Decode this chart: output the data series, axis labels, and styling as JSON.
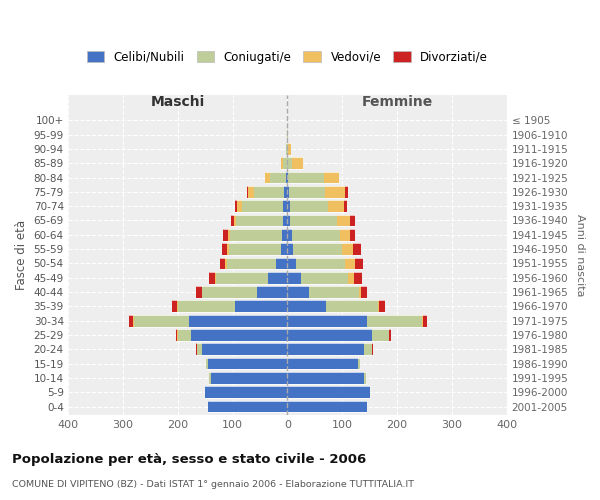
{
  "age_groups": [
    "0-4",
    "5-9",
    "10-14",
    "15-19",
    "20-24",
    "25-29",
    "30-34",
    "35-39",
    "40-44",
    "45-49",
    "50-54",
    "55-59",
    "60-64",
    "65-69",
    "70-74",
    "75-79",
    "80-84",
    "85-89",
    "90-94",
    "95-99",
    "100+"
  ],
  "birth_years": [
    "2001-2005",
    "1996-2000",
    "1991-1995",
    "1986-1990",
    "1981-1985",
    "1976-1980",
    "1971-1975",
    "1966-1970",
    "1961-1965",
    "1956-1960",
    "1951-1955",
    "1946-1950",
    "1941-1945",
    "1936-1940",
    "1931-1935",
    "1926-1930",
    "1921-1925",
    "1916-1920",
    "1911-1915",
    "1906-1910",
    "≤ 1905"
  ],
  "colors": {
    "celibe": "#4472C4",
    "coniugato": "#BFCE99",
    "vedovo": "#F0C060",
    "divorziato": "#CC2222"
  },
  "male_celibe": [
    145,
    150,
    140,
    145,
    155,
    175,
    180,
    95,
    55,
    35,
    20,
    12,
    10,
    8,
    8,
    6,
    3,
    1,
    0,
    0,
    0
  ],
  "male_coniugato": [
    0,
    0,
    2,
    3,
    10,
    25,
    100,
    105,
    100,
    95,
    90,
    95,
    95,
    85,
    75,
    55,
    28,
    7,
    2,
    0,
    0
  ],
  "male_vedovo": [
    0,
    0,
    0,
    0,
    0,
    1,
    1,
    1,
    1,
    2,
    3,
    3,
    4,
    5,
    8,
    10,
    10,
    3,
    1,
    0,
    0
  ],
  "male_divorziato": [
    0,
    0,
    0,
    0,
    1,
    2,
    8,
    10,
    10,
    10,
    10,
    10,
    8,
    5,
    5,
    3,
    0,
    0,
    0,
    0,
    0
  ],
  "female_nubile": [
    145,
    150,
    140,
    128,
    140,
    155,
    145,
    70,
    40,
    25,
    15,
    10,
    8,
    5,
    4,
    3,
    2,
    0,
    0,
    0,
    0
  ],
  "female_coniugata": [
    0,
    0,
    3,
    5,
    15,
    30,
    100,
    95,
    90,
    85,
    90,
    90,
    88,
    85,
    70,
    65,
    65,
    8,
    2,
    1,
    0
  ],
  "female_vedova": [
    0,
    0,
    0,
    0,
    0,
    1,
    2,
    3,
    5,
    12,
    18,
    20,
    18,
    25,
    30,
    38,
    28,
    20,
    5,
    1,
    0
  ],
  "female_divorziata": [
    0,
    0,
    0,
    0,
    1,
    3,
    8,
    10,
    10,
    15,
    15,
    15,
    10,
    8,
    5,
    5,
    0,
    0,
    0,
    0,
    0
  ],
  "xlim": 400,
  "title": "Popolazione per età, sesso e stato civile - 2006",
  "subtitle": "COMUNE DI VIPITENO (BZ) - Dati ISTAT 1° gennaio 2006 - Elaborazione TUTTITALIA.IT",
  "header_left": "Maschi",
  "header_right": "Femmine",
  "ylabel_left": "Fasce di età",
  "ylabel_right": "Anni di nascita",
  "legend_labels": [
    "Celibi/Nubili",
    "Coniugati/e",
    "Vedovi/e",
    "Divorziati/e"
  ],
  "bg_color": "#ffffff",
  "plot_bg": "#eeeeee"
}
